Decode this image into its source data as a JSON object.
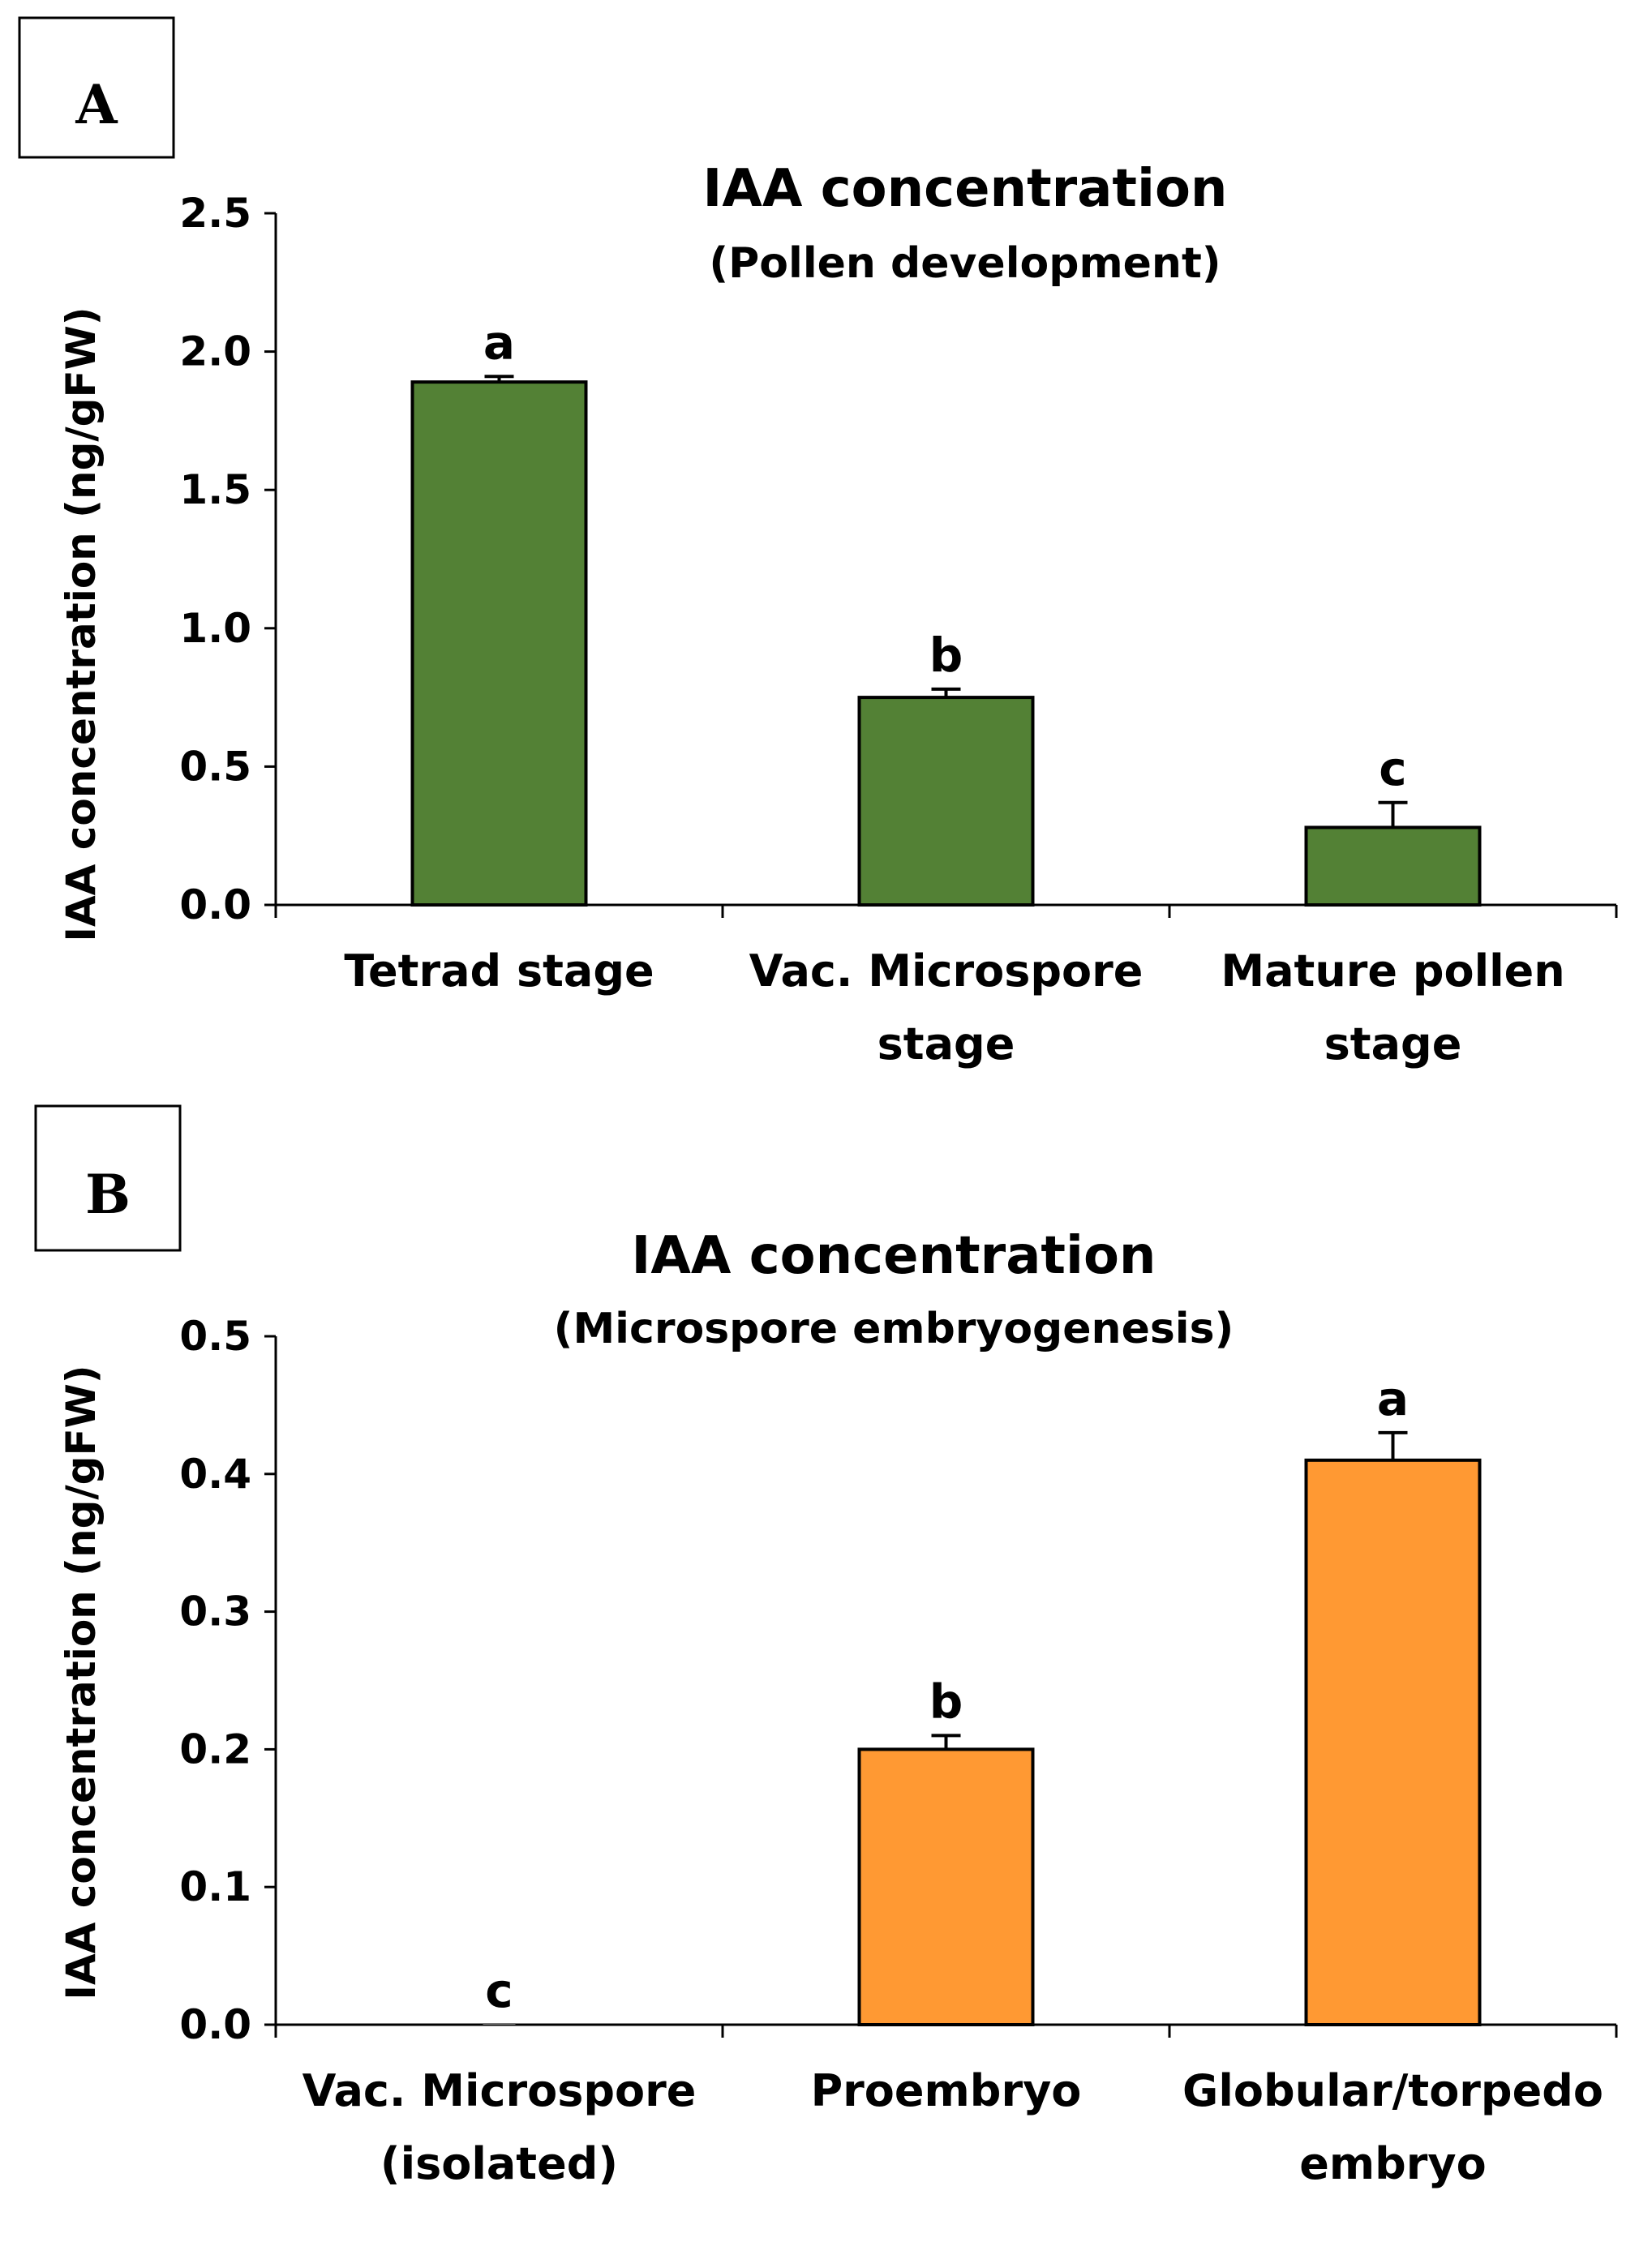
{
  "chart_data": [
    {
      "panel": "A",
      "type": "bar",
      "title": "IAA concentration",
      "subtitle": "(Pollen development)",
      "ylabel": "IAA concentration (ng/gFW)",
      "xlabel": "",
      "ylim": [
        0,
        2.5
      ],
      "yticks": [
        "0.0",
        "0.5",
        "1.0",
        "1.5",
        "2.0",
        "2.5"
      ],
      "ytick_values": [
        0,
        0.5,
        1.0,
        1.5,
        2.0,
        2.5
      ],
      "categories": [
        [
          "Tetrad stage"
        ],
        [
          "Vac. Microspore",
          "stage"
        ],
        [
          "Mature pollen",
          "stage"
        ]
      ],
      "values": [
        1.89,
        0.75,
        0.28
      ],
      "errors": [
        0.02,
        0.03,
        0.09
      ],
      "labels": [
        "a",
        "b",
        "c"
      ],
      "color": "#538135"
    },
    {
      "panel": "B",
      "type": "bar",
      "title": "IAA concentration",
      "subtitle": "(Microspore embryogenesis)",
      "ylabel": "IAA concentration (ng/gFW)",
      "xlabel": "",
      "ylim": [
        0,
        0.5
      ],
      "yticks": [
        "0.0",
        "0.1",
        "0.2",
        "0.3",
        "0.4",
        "0.5"
      ],
      "ytick_values": [
        0,
        0.1,
        0.2,
        0.3,
        0.4,
        0.5
      ],
      "categories": [
        [
          "Vac. Microspore",
          "(isolated)"
        ],
        [
          "Proembryo"
        ],
        [
          "Globular/torpedo",
          "embryo"
        ]
      ],
      "values": [
        0.0,
        0.2,
        0.41
      ],
      "errors": [
        0.0,
        0.01,
        0.02
      ],
      "labels": [
        "c",
        "b",
        "a"
      ],
      "color": "#FF9933"
    }
  ]
}
